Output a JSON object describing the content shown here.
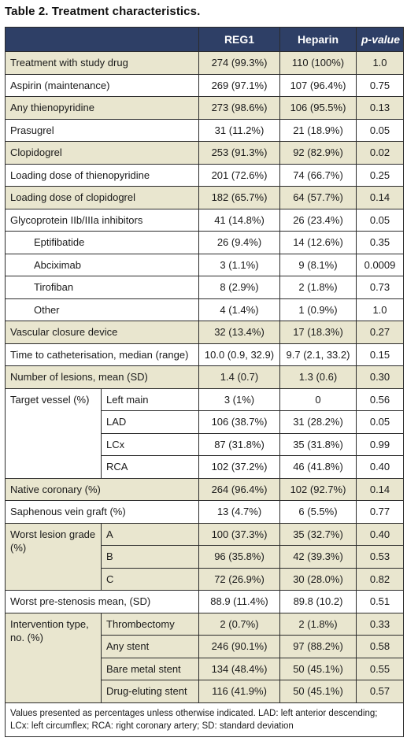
{
  "title": "Table 2. Treatment characteristics.",
  "columns": {
    "reg1": "REG1",
    "heparin": "Heparin",
    "p": "p-value"
  },
  "rows": [
    {
      "label": "Treatment with study drug",
      "reg1": "274 (99.3%)",
      "heparin": "110 (100%)",
      "p": "1.0"
    },
    {
      "label": "Aspirin (maintenance)",
      "reg1": "269 (97.1%)",
      "heparin": "107 (96.4%)",
      "p": "0.75"
    },
    {
      "label": "Any thienopyridine",
      "reg1": "273 (98.6%)",
      "heparin": "106 (95.5%)",
      "p": "0.13"
    },
    {
      "label": "Prasugrel",
      "reg1": "31 (11.2%)",
      "heparin": "21 (18.9%)",
      "p": "0.05"
    },
    {
      "label": "Clopidogrel",
      "reg1": "253 (91.3%)",
      "heparin": "92 (82.9%)",
      "p": "0.02"
    },
    {
      "label": "Loading dose of thienopyridine",
      "reg1": "201 (72.6%)",
      "heparin": "74 (66.7%)",
      "p": "0.25"
    },
    {
      "label": "Loading dose of clopidogrel",
      "reg1": "182 (65.7%)",
      "heparin": "64 (57.7%)",
      "p": "0.14"
    },
    {
      "label": "Glycoprotein IIb/IIIa inhibitors",
      "reg1": "41 (14.8%)",
      "heparin": "26 (23.4%)",
      "p": "0.05"
    },
    {
      "label": "Eptifibatide",
      "reg1": "26 (9.4%)",
      "heparin": "14 (12.6%)",
      "p": "0.35"
    },
    {
      "label": "Abciximab",
      "reg1": "3 (1.1%)",
      "heparin": "9 (8.1%)",
      "p": "0.0009"
    },
    {
      "label": "Tirofiban",
      "reg1": "8 (2.9%)",
      "heparin": "2 (1.8%)",
      "p": "0.73"
    },
    {
      "label": "Other",
      "reg1": "4 (1.4%)",
      "heparin": "1 (0.9%)",
      "p": "1.0"
    },
    {
      "label": "Vascular closure device",
      "reg1": "32 (13.4%)",
      "heparin": "17 (18.3%)",
      "p": "0.27"
    },
    {
      "label": "Time to catheterisation, median (range)",
      "reg1": "10.0 (0.9, 32.9)",
      "heparin": "9.7 (2.1, 33.2)",
      "p": "0.15"
    },
    {
      "label": "Number of lesions, mean (SD)",
      "reg1": "1.4 (0.7)",
      "heparin": "1.3 (0.6)",
      "p": "0.30"
    }
  ],
  "target_vessel": {
    "label": "Target vessel (%)",
    "rows": [
      {
        "sub": "Left main",
        "reg1": "3 (1%)",
        "heparin": "0",
        "p": "0.56"
      },
      {
        "sub": "LAD",
        "reg1": "106 (38.7%)",
        "heparin": "31 (28.2%)",
        "p": "0.05"
      },
      {
        "sub": "LCx",
        "reg1": "87 (31.8%)",
        "heparin": "35 (31.8%)",
        "p": "0.99"
      },
      {
        "sub": "RCA",
        "reg1": "102 (37.2%)",
        "heparin": "46 (41.8%)",
        "p": "0.40"
      }
    ]
  },
  "native_coronary": {
    "label": "Native coronary (%)",
    "reg1": "264 (96.4%)",
    "heparin": "102 (92.7%)",
    "p": "0.14"
  },
  "saphenous": {
    "label": "Saphenous vein graft (%)",
    "reg1": "13 (4.7%)",
    "heparin": "6 (5.5%)",
    "p": "0.77"
  },
  "worst_lesion": {
    "label": "Worst lesion grade (%)",
    "rows": [
      {
        "sub": "A",
        "reg1": "100 (37.3%)",
        "heparin": "35 (32.7%)",
        "p": "0.40"
      },
      {
        "sub": "B",
        "reg1": "96 (35.8%)",
        "heparin": "42 (39.3%)",
        "p": "0.53"
      },
      {
        "sub": "C",
        "reg1": "72 (26.9%)",
        "heparin": "30 (28.0%)",
        "p": "0.82"
      }
    ]
  },
  "worst_pre": {
    "label": "Worst pre-stenosis mean, (SD)",
    "reg1": "88.9 (11.4%)",
    "heparin": "89.8 (10.2)",
    "p": "0.51"
  },
  "intervention": {
    "label": "Intervention type, no. (%)",
    "rows": [
      {
        "sub": "Thrombectomy",
        "reg1": "2 (0.7%)",
        "heparin": "2 (1.8%)",
        "p": "0.33"
      },
      {
        "sub": "Any stent",
        "reg1": "246 (90.1%)",
        "heparin": "97 (88.2%)",
        "p": "0.58"
      },
      {
        "sub": "Bare metal stent",
        "reg1": "134 (48.4%)",
        "heparin": "50 (45.1%)",
        "p": "0.55"
      },
      {
        "sub": "Drug-eluting stent",
        "reg1": "116 (41.9%)",
        "heparin": "50 (45.1%)",
        "p": "0.57"
      }
    ]
  },
  "footnote": "Values presented as percentages unless otherwise indicated. LAD: left anterior descending; LCx: left circumflex; RCA: right coronary artery; SD: standard deviation",
  "colors": {
    "header_bg": "#2e3f66",
    "shade": "#e9e6cf"
  }
}
